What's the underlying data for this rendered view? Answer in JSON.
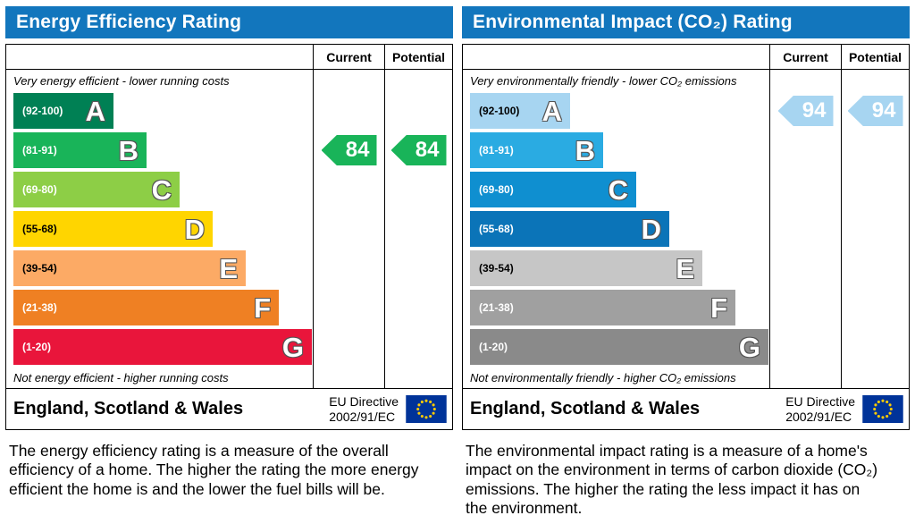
{
  "colors": {
    "header_bar": "#1276bd",
    "border": "#000000",
    "eu_flag_blue": "#003399",
    "eu_flag_stars": "#ffcc00"
  },
  "panels": [
    {
      "title": "Energy Efficiency Rating",
      "header": {
        "current": "Current",
        "potential": "Potential"
      },
      "top_note": "Very energy efficient - lower running costs",
      "bottom_note": "Not energy efficient - higher running costs",
      "footer": {
        "region": "England, Scotland & Wales",
        "directive_line1": "EU Directive",
        "directive_line2": "2002/91/EC"
      },
      "description": "The energy efficiency rating is a measure of the overall efficiency of a home. The higher the rating the more energy efficient the home is and the lower the fuel bills will be.",
      "chart_data": {
        "type": "bar",
        "subtype": "epc-rating-bands",
        "bands": [
          {
            "range": "(92-100)",
            "letter": "A",
            "color": "#008054",
            "range_text_color": "#ffffff"
          },
          {
            "range": "(81-91)",
            "letter": "B",
            "color": "#19b459",
            "range_text_color": "#ffffff"
          },
          {
            "range": "(69-80)",
            "letter": "C",
            "color": "#8dce46",
            "range_text_color": "#ffffff"
          },
          {
            "range": "(55-68)",
            "letter": "D",
            "color": "#ffd500",
            "range_text_color": "#000000"
          },
          {
            "range": "(39-54)",
            "letter": "E",
            "color": "#fcaa65",
            "range_text_color": "#000000"
          },
          {
            "range": "(21-38)",
            "letter": "F",
            "color": "#ef8023",
            "range_text_color": "#ffffff"
          },
          {
            "range": "(1-20)",
            "letter": "G",
            "color": "#e9153b",
            "range_text_color": "#ffffff"
          }
        ],
        "current": {
          "value": 84,
          "band": "B",
          "band_index": 1,
          "arrow_color": "#19b459",
          "text_color": "#ffffff"
        },
        "potential": {
          "value": 84,
          "band": "B",
          "band_index": 1,
          "arrow_color": "#19b459",
          "text_color": "#ffffff"
        }
      }
    },
    {
      "title": "Environmental Impact (CO₂) Rating",
      "header": {
        "current": "Current",
        "potential": "Potential"
      },
      "top_note": "Very environmentally friendly - lower CO₂ emissions",
      "bottom_note": "Not environmentally friendly - higher CO₂ emissions",
      "footer": {
        "region": "England, Scotland & Wales",
        "directive_line1": "EU Directive",
        "directive_line2": "2002/91/EC"
      },
      "description": "The environmental impact rating is a measure of a home's impact on the environment in terms of carbon dioxide (CO₂) emissions. The higher the rating the less impact it has on the environment.",
      "chart_data": {
        "type": "bar",
        "subtype": "epc-rating-bands",
        "bands": [
          {
            "range": "(92-100)",
            "letter": "A",
            "color": "#a7d5f1",
            "range_text_color": "#000000"
          },
          {
            "range": "(81-91)",
            "letter": "B",
            "color": "#2aabe2",
            "range_text_color": "#ffffff"
          },
          {
            "range": "(69-80)",
            "letter": "C",
            "color": "#0f8fd0",
            "range_text_color": "#ffffff"
          },
          {
            "range": "(55-68)",
            "letter": "D",
            "color": "#0b74b8",
            "range_text_color": "#ffffff"
          },
          {
            "range": "(39-54)",
            "letter": "E",
            "color": "#c6c6c6",
            "range_text_color": "#000000"
          },
          {
            "range": "(21-38)",
            "letter": "F",
            "color": "#a0a0a0",
            "range_text_color": "#ffffff"
          },
          {
            "range": "(1-20)",
            "letter": "G",
            "color": "#8a8a8a",
            "range_text_color": "#ffffff"
          }
        ],
        "current": {
          "value": 94,
          "band": "A",
          "band_index": 0,
          "arrow_color": "#a7d5f1",
          "text_color": "#ffffff"
        },
        "potential": {
          "value": 94,
          "band": "A",
          "band_index": 0,
          "arrow_color": "#a7d5f1",
          "text_color": "#ffffff"
        }
      }
    }
  ]
}
